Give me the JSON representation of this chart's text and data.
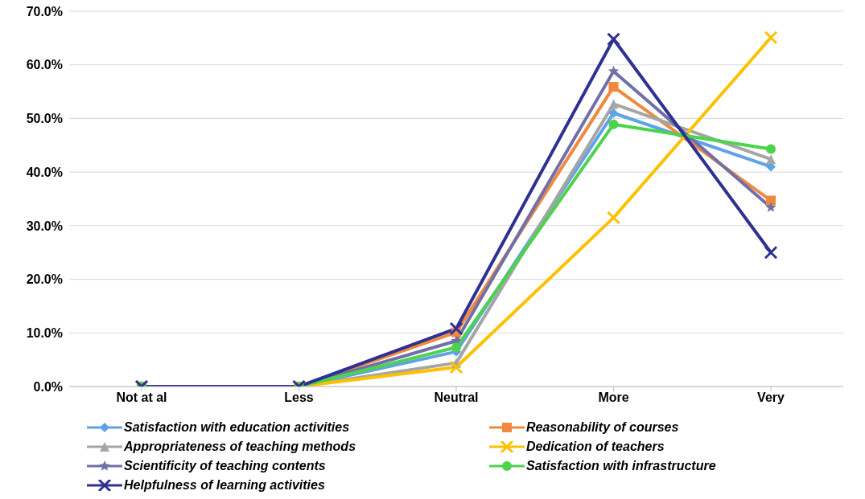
{
  "chart_data": {
    "type": "line",
    "categories": [
      "Not at al",
      "Less",
      "Neutral",
      "More",
      "Very"
    ],
    "ylim": [
      0,
      70
    ],
    "yticks": [
      {
        "value": 0,
        "label": "0.0%"
      },
      {
        "value": 10,
        "label": "10.0%"
      },
      {
        "value": 20,
        "label": "20.0%"
      },
      {
        "value": 30,
        "label": "30.0%"
      },
      {
        "value": 40,
        "label": "40.0%"
      },
      {
        "value": 50,
        "label": "50.0%"
      },
      {
        "value": 60,
        "label": "60.0%"
      },
      {
        "value": 70,
        "label": "70.0%"
      }
    ],
    "grid": "y",
    "legend": "bottom",
    "series": [
      {
        "name": "Satisfaction with education activities",
        "color": "#5fa2e8",
        "marker": "diamond",
        "values": [
          0,
          0,
          6.5,
          51.0,
          41.0
        ]
      },
      {
        "name": "Reasonability of courses",
        "color": "#f0883e",
        "marker": "square",
        "values": [
          0,
          0,
          10.1,
          55.9,
          34.7
        ]
      },
      {
        "name": "Appropriateness of teaching methods",
        "color": "#a5a5a5",
        "marker": "triangle",
        "values": [
          0,
          0,
          4.4,
          52.7,
          42.4
        ]
      },
      {
        "name": "Dedication of teachers",
        "color": "#ffc000",
        "marker": "cross",
        "values": [
          0,
          0,
          3.6,
          31.5,
          65.1
        ]
      },
      {
        "name": "Scientificity of teaching contents",
        "color": "#7070a8",
        "marker": "star",
        "values": [
          0,
          0,
          8.5,
          58.8,
          33.4
        ]
      },
      {
        "name": "Satisfaction with infrastructure",
        "color": "#4cd34c",
        "marker": "circle",
        "values": [
          0,
          0,
          7.3,
          48.9,
          44.3
        ]
      },
      {
        "name": "Helpfulness of learning activities",
        "color": "#2e3192",
        "marker": "cross",
        "values": [
          0,
          0,
          10.8,
          64.8,
          25.0
        ]
      }
    ]
  }
}
